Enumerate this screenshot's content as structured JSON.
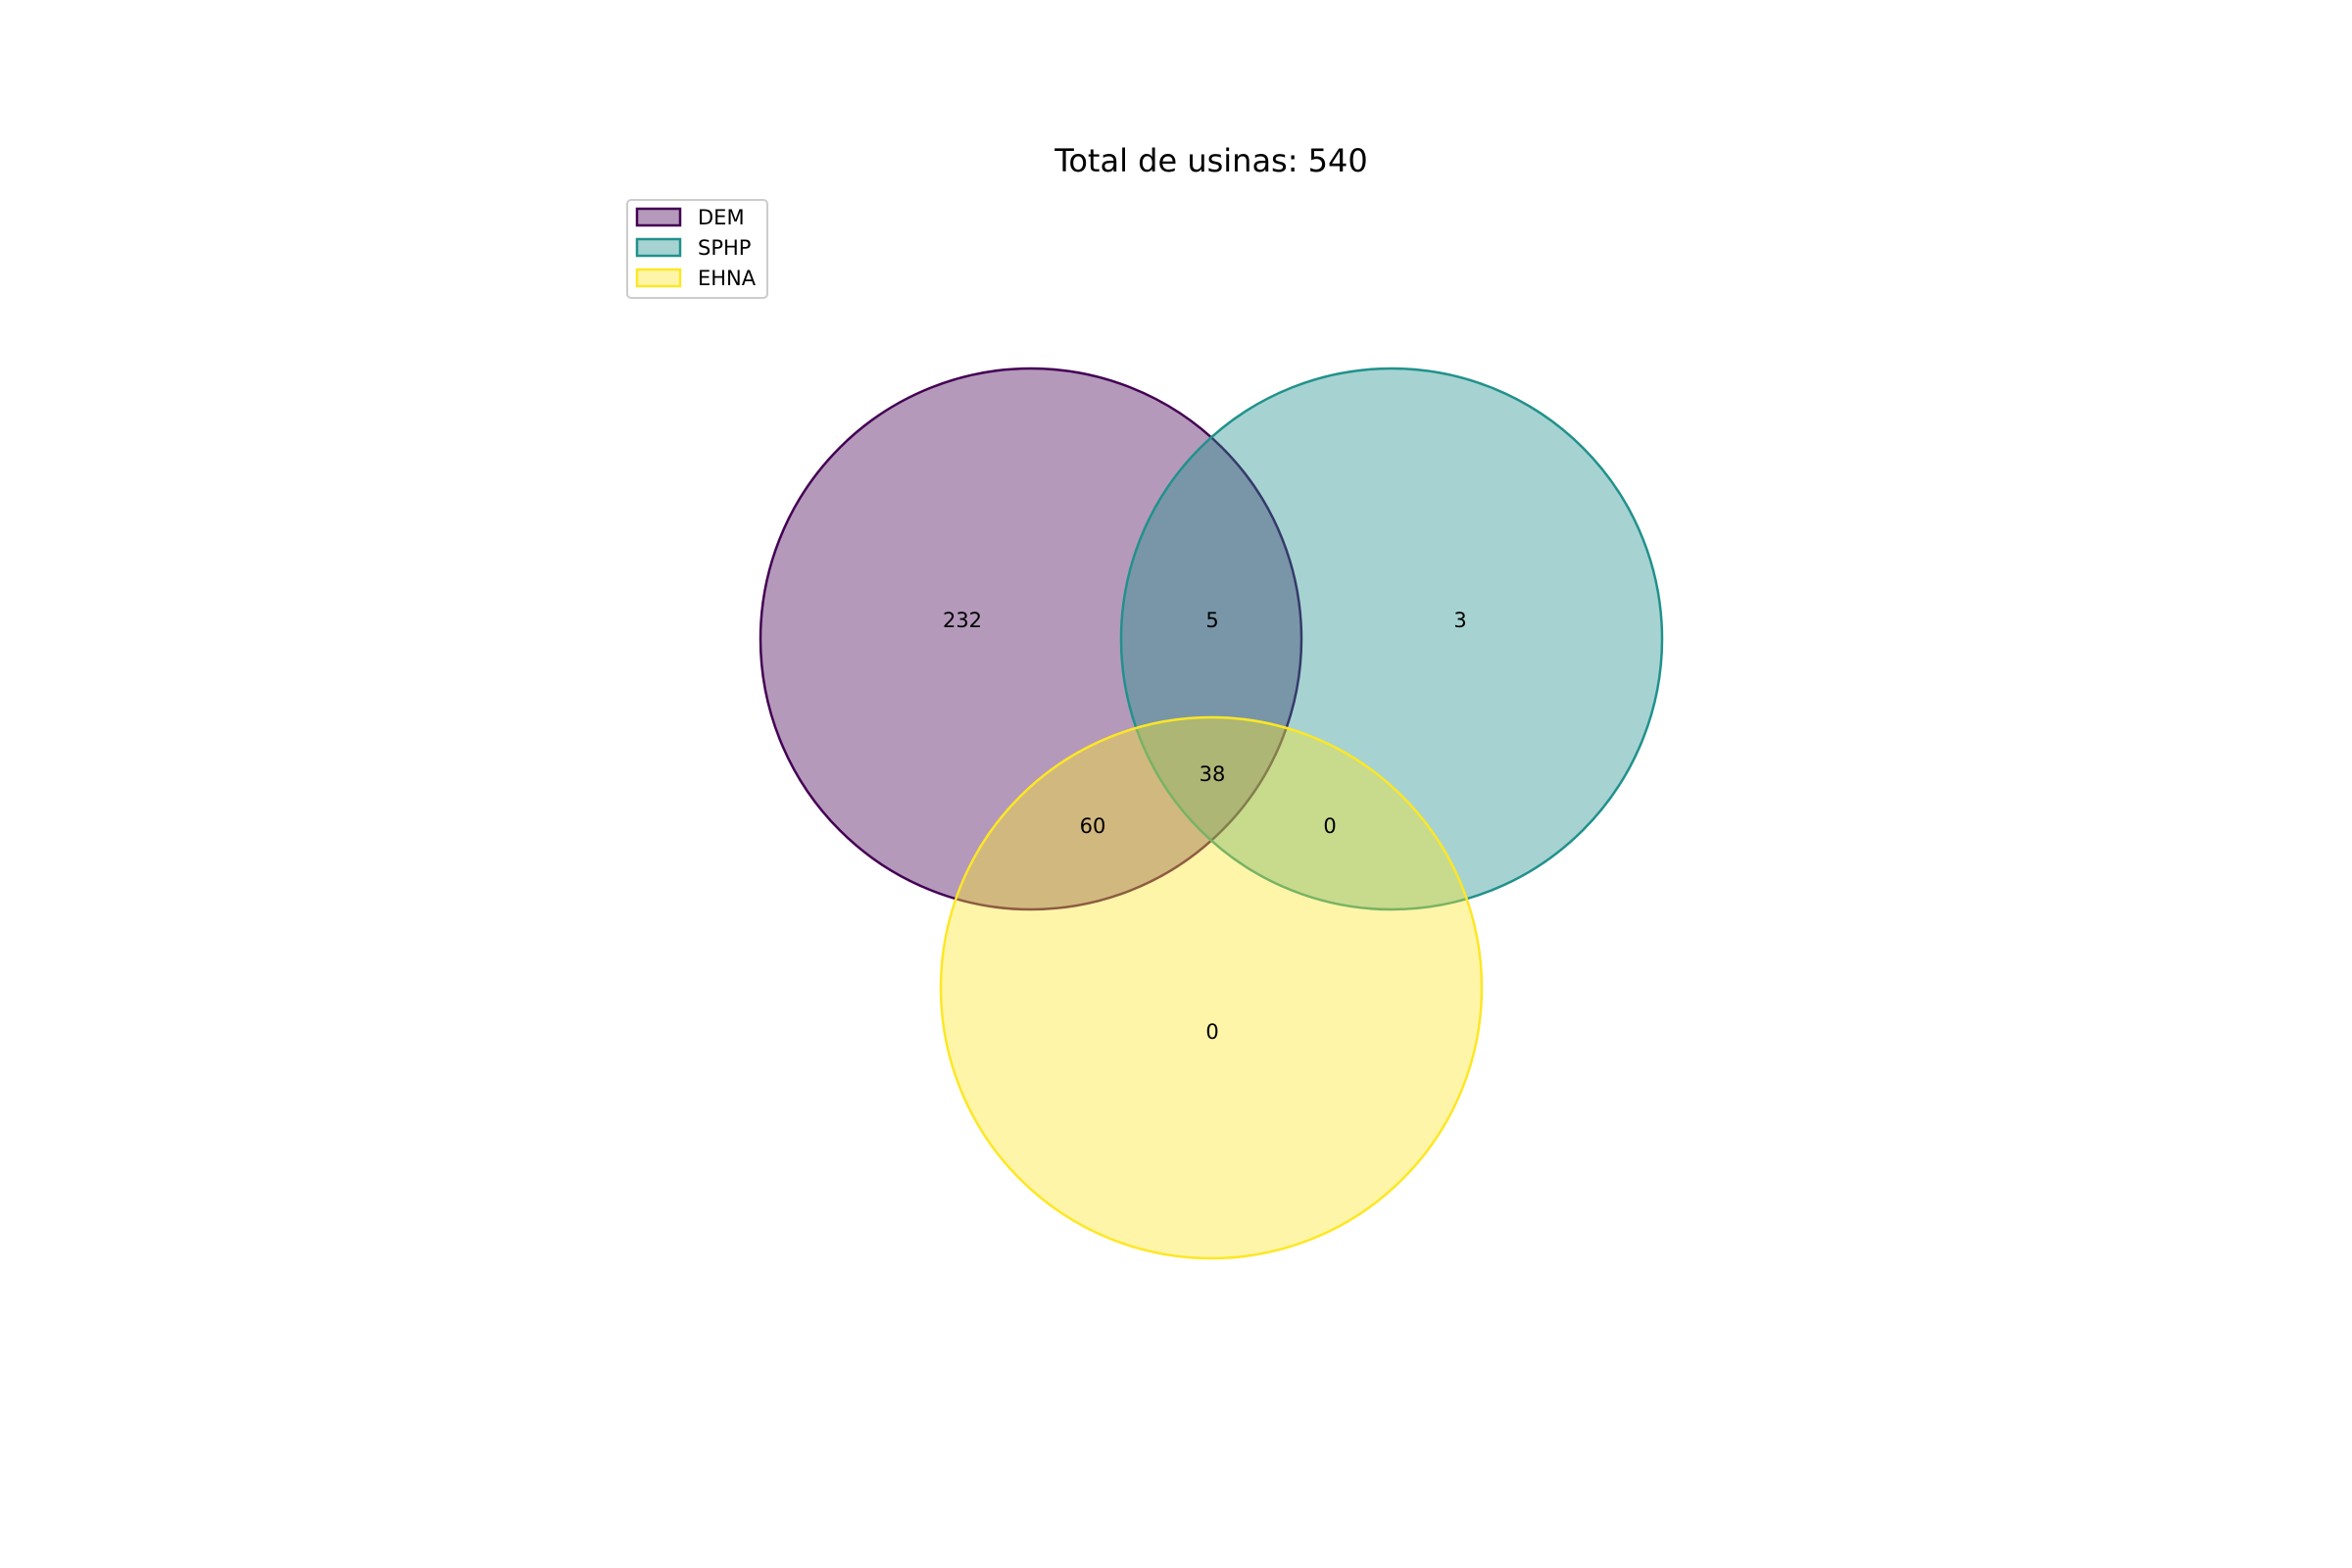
{
  "chart_data": {
    "type": "venn",
    "title": "Total de usinas: 540",
    "sets": [
      {
        "name": "DEM",
        "color": "#440154"
      },
      {
        "name": "SPHP",
        "color": "#21918c"
      },
      {
        "name": "EHNA",
        "color": "#fde725"
      }
    ],
    "regions": {
      "DEM_only": 232,
      "SPHP_only": 3,
      "EHNA_only": 0,
      "DEM_SPHP": 5,
      "DEM_EHNA": 60,
      "SPHP_EHNA": 0,
      "DEM_SPHP_EHNA": 38
    },
    "legend_position": "top-left"
  }
}
